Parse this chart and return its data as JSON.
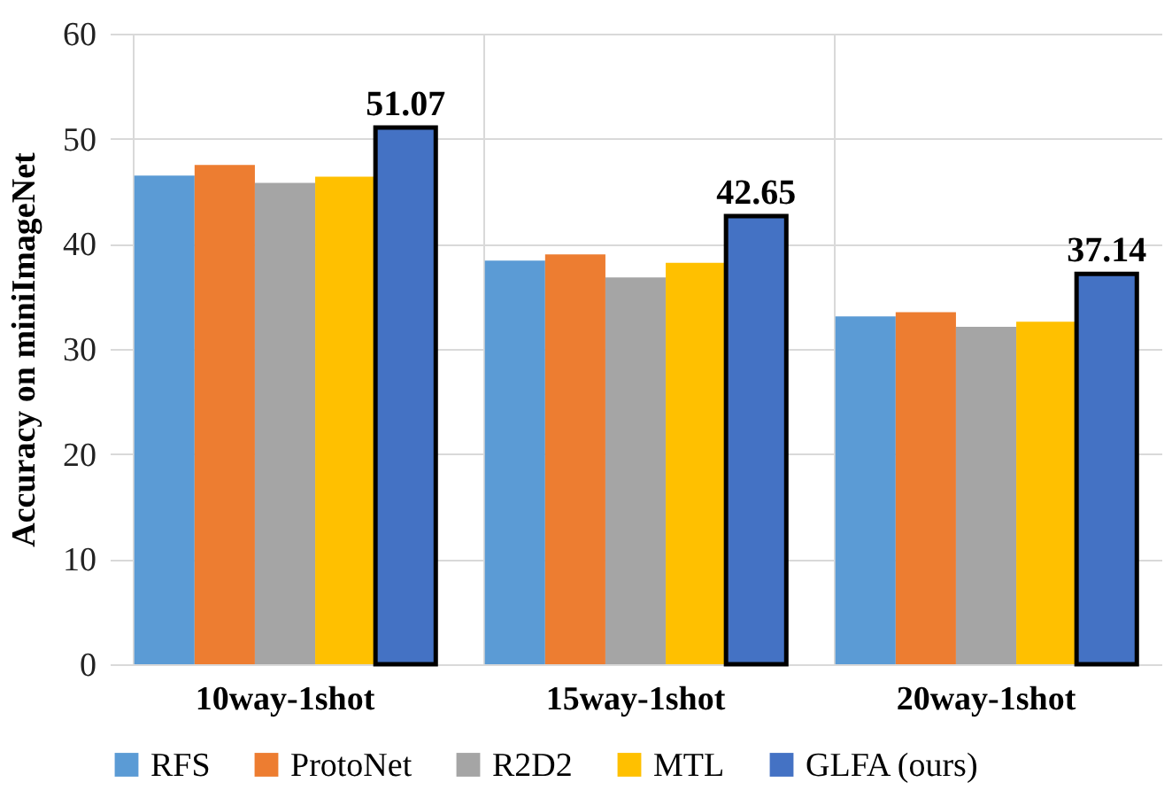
{
  "chart_data": {
    "type": "bar",
    "ylabel": "Accuracy on miniImageNet",
    "categories": [
      "10way-1shot",
      "15way-1shot",
      "20way-1shot"
    ],
    "series": [
      {
        "name": "RFS",
        "color": "#5b9bd5",
        "values": [
          46.5,
          38.4,
          33.1
        ]
      },
      {
        "name": "ProtoNet",
        "color": "#ed7d31",
        "values": [
          47.5,
          39.0,
          33.5
        ]
      },
      {
        "name": "R2D2",
        "color": "#a5a5a5",
        "values": [
          45.8,
          36.8,
          32.1
        ]
      },
      {
        "name": "MTL",
        "color": "#ffc000",
        "values": [
          46.4,
          38.2,
          32.6
        ]
      },
      {
        "name": "GLFA (ours)",
        "color": "#4472c4",
        "values": [
          51.07,
          42.65,
          37.14
        ],
        "value_labels": [
          "51.07",
          "42.65",
          "37.14"
        ]
      }
    ],
    "ylim": [
      0,
      60
    ],
    "yticks": [
      0,
      10,
      20,
      30,
      40,
      50,
      60
    ],
    "grid": true,
    "legend": "bottom"
  }
}
